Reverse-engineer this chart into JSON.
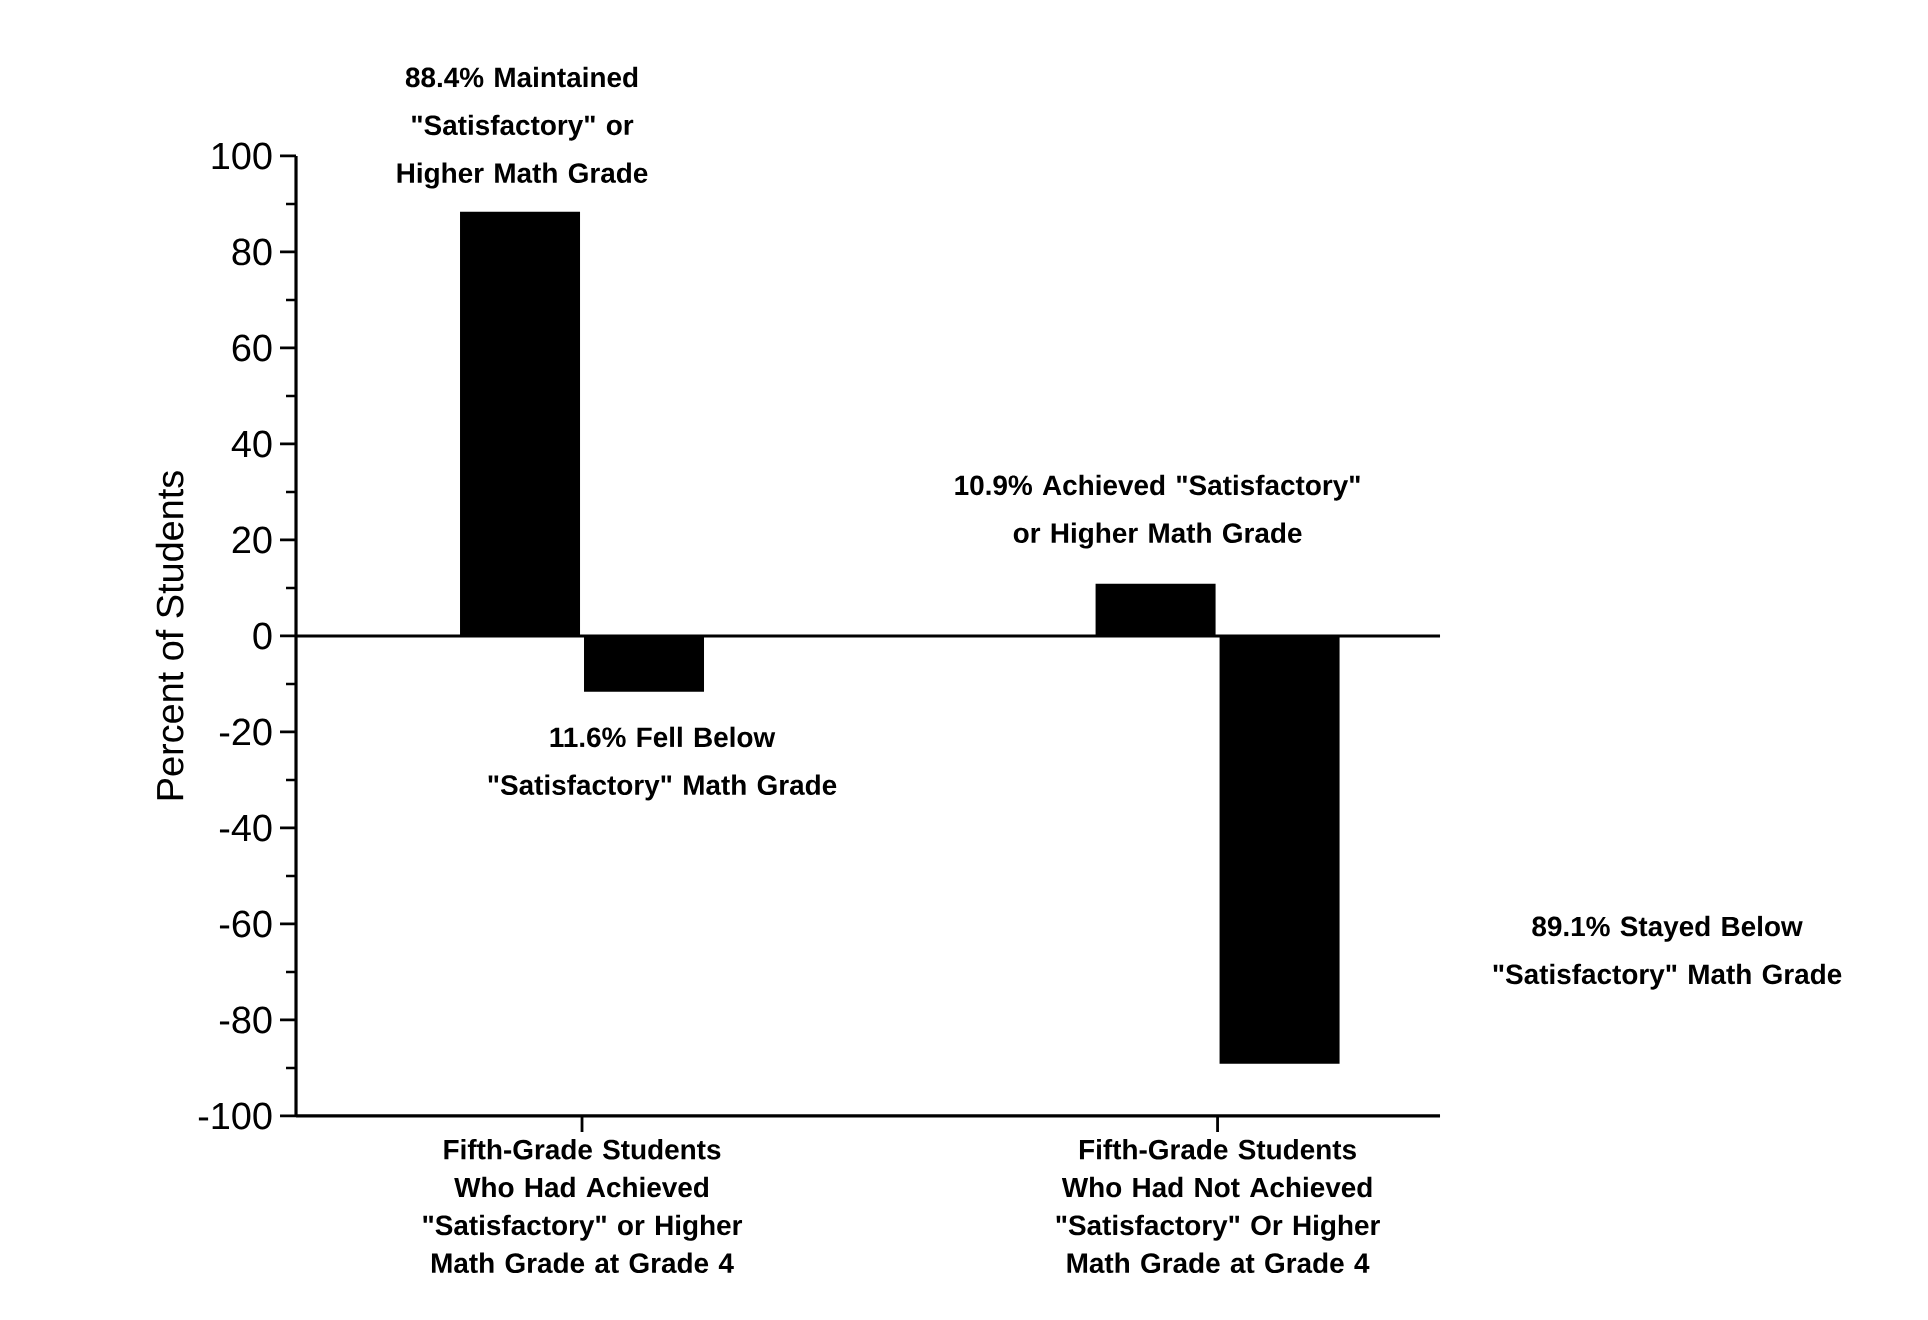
{
  "chart_data": {
    "type": "bar",
    "ylabel": "Percent of Students",
    "categories": [
      "Fifth-Grade Students Who Had Achieved \"Satisfactory\" or Higher Math Grade at Grade 4",
      "Fifth-Grade Students Who Had Not Achieved \"Satisfactory\" Or Higher Math Grade at Grade 4"
    ],
    "series": [
      {
        "color": "#000000",
        "values": [
          88.4,
          10.9
        ]
      },
      {
        "color": "#000000",
        "values": [
          -11.6,
          -89.1
        ]
      }
    ],
    "ylim": [
      -100,
      100
    ],
    "yticks": [
      -100,
      -80,
      -60,
      -40,
      -20,
      0,
      20,
      40,
      60,
      80,
      100
    ],
    "grid": false,
    "ref_lines": [
      {
        "axis": "y",
        "value": 0,
        "color": "#000000"
      }
    ],
    "annotations": [
      {
        "text": "88.4% Maintained \"Satisfactory\" or Higher Math Grade",
        "x": "Fifth-Grade Students Who Had Achieved \"Satisfactory\" or Higher Math Grade at Grade 4",
        "y": 88.4
      },
      {
        "text": "11.6% Fell Below \"Satisfactory\" Math Grade",
        "x": "Fifth-Grade Students Who Had Achieved \"Satisfactory\" or Higher Math Grade at Grade 4",
        "y": -11.6
      },
      {
        "text": "10.9% Achieved \"Satisfactory\" or Higher Math Grade",
        "x": "Fifth-Grade Students Who Had Not Achieved \"Satisfactory\" Or Higher Math Grade at Grade 4",
        "y": 10.9
      },
      "89.1% Stayed Below \"Satisfactory\" Math Grade"
    ]
  }
}
